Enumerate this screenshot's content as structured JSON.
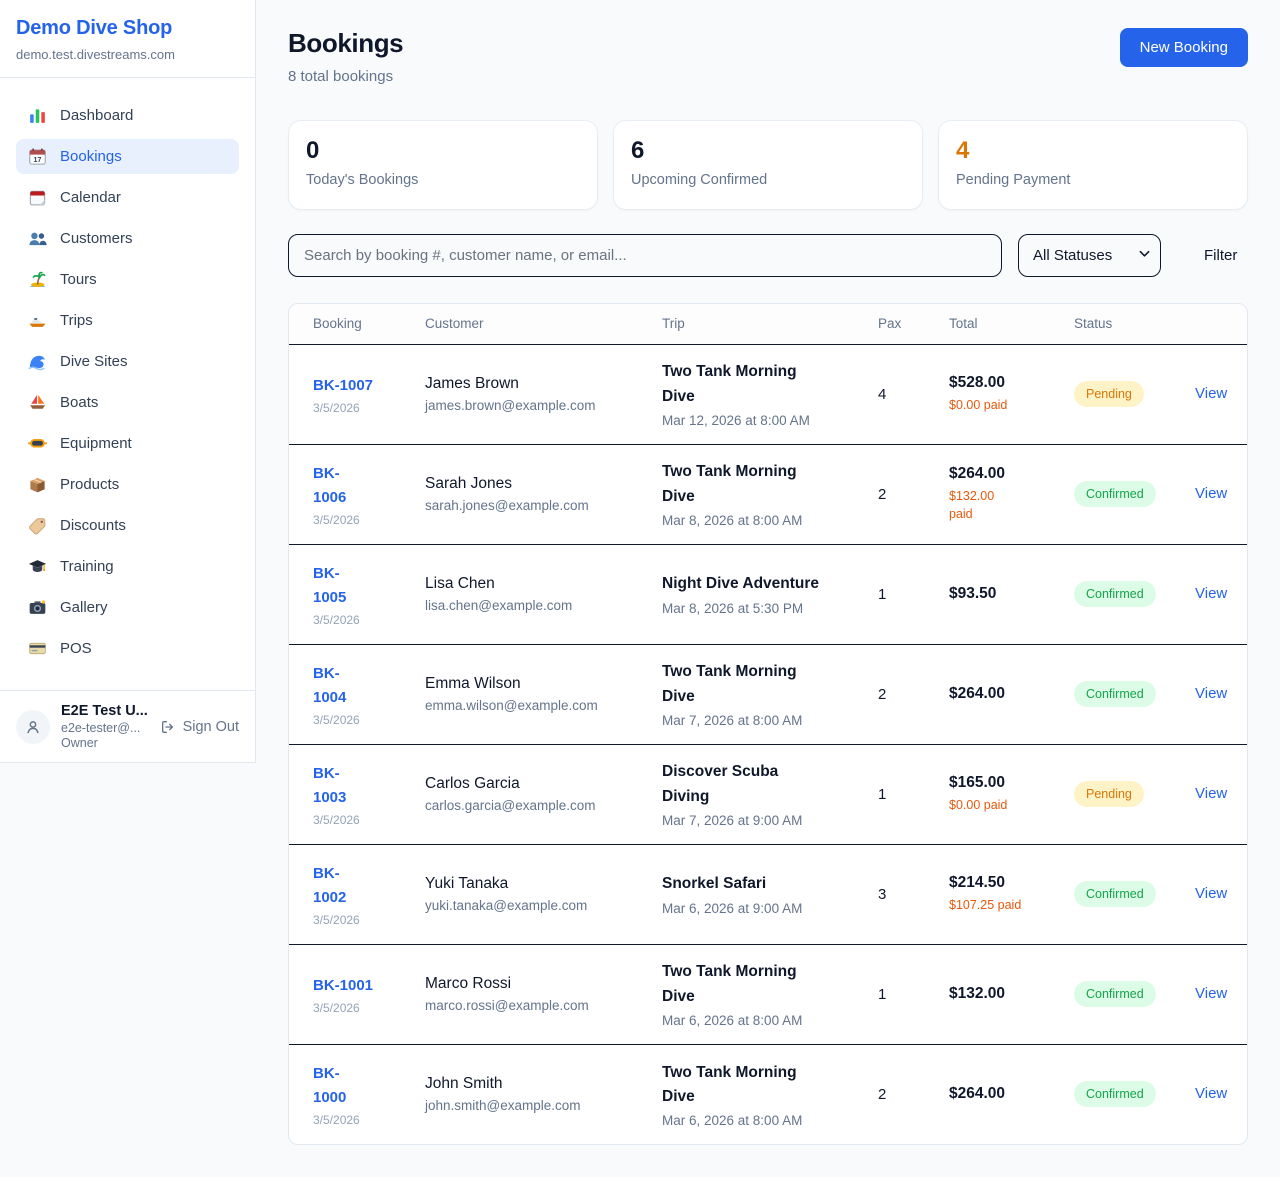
{
  "sidebar": {
    "title": "Demo Dive Shop",
    "domain": "demo.test.divestreams.com",
    "items": [
      {
        "icon": "dashboard-icon",
        "label": "Dashboard",
        "active": false
      },
      {
        "icon": "bookings-calendar-icon",
        "label": "Bookings",
        "active": true
      },
      {
        "icon": "calendar-icon",
        "label": "Calendar",
        "active": false
      },
      {
        "icon": "customers-icon",
        "label": "Customers",
        "active": false
      },
      {
        "icon": "tours-island-icon",
        "label": "Tours",
        "active": false
      },
      {
        "icon": "trips-boat-icon",
        "label": "Trips",
        "active": false
      },
      {
        "icon": "dive-sites-wave-icon",
        "label": "Dive Sites",
        "active": false
      },
      {
        "icon": "boats-sailboat-icon",
        "label": "Boats",
        "active": false
      },
      {
        "icon": "equipment-mask-icon",
        "label": "Equipment",
        "active": false
      },
      {
        "icon": "products-package-icon",
        "label": "Products",
        "active": false
      },
      {
        "icon": "discounts-tag-icon",
        "label": "Discounts",
        "active": false
      },
      {
        "icon": "training-cap-icon",
        "label": "Training",
        "active": false
      },
      {
        "icon": "gallery-camera-icon",
        "label": "Gallery",
        "active": false
      },
      {
        "icon": "pos-card-icon",
        "label": "POS",
        "active": false
      }
    ],
    "user": {
      "name": "E2E Test U...",
      "email": "e2e-tester@...",
      "role": "Owner",
      "signout_label": "Sign Out"
    }
  },
  "header": {
    "title": "Bookings",
    "subtitle": "8 total bookings",
    "new_booking_label": "New Booking"
  },
  "stats": [
    {
      "value": "0",
      "label": "Today's Bookings",
      "value_color": "#0f172a"
    },
    {
      "value": "6",
      "label": "Upcoming Confirmed",
      "value_color": "#0f172a"
    },
    {
      "value": "4",
      "label": "Pending Payment",
      "value_color": "#d97706"
    }
  ],
  "filters": {
    "search_placeholder": "Search by booking #, customer name, or email...",
    "status_selected": "All Statuses",
    "filter_label": "Filter"
  },
  "table": {
    "columns": [
      "Booking",
      "Customer",
      "Trip",
      "Pax",
      "Total",
      "Status",
      ""
    ],
    "rows": [
      {
        "id_lines": [
          "BK-1007"
        ],
        "date": "3/5/2026",
        "customer": "James Brown",
        "email": "james.brown@example.com",
        "trip_lines": [
          "Two Tank Morning",
          "Dive"
        ],
        "trip_date": "Mar 12, 2026 at 8:00 AM",
        "pax": "4",
        "total": "$528.00",
        "paid_lines": [
          "$0.00 paid"
        ],
        "status": "Pending",
        "view_label": "View"
      },
      {
        "id_lines": [
          "BK-",
          "1006"
        ],
        "date": "3/5/2026",
        "customer": "Sarah Jones",
        "email": "sarah.jones@example.com",
        "trip_lines": [
          "Two Tank Morning",
          "Dive"
        ],
        "trip_date": "Mar 8, 2026 at 8:00 AM",
        "pax": "2",
        "total": "$264.00",
        "paid_lines": [
          "$132.00",
          "paid"
        ],
        "status": "Confirmed",
        "view_label": "View"
      },
      {
        "id_lines": [
          "BK-",
          "1005"
        ],
        "date": "3/5/2026",
        "customer": "Lisa Chen",
        "email": "lisa.chen@example.com",
        "trip_lines": [
          "Night Dive Adventure"
        ],
        "trip_date": "Mar 8, 2026 at 5:30 PM",
        "pax": "1",
        "total": "$93.50",
        "paid_lines": [],
        "status": "Confirmed",
        "view_label": "View"
      },
      {
        "id_lines": [
          "BK-",
          "1004"
        ],
        "date": "3/5/2026",
        "customer": "Emma Wilson",
        "email": "emma.wilson@example.com",
        "trip_lines": [
          "Two Tank Morning",
          "Dive"
        ],
        "trip_date": "Mar 7, 2026 at 8:00 AM",
        "pax": "2",
        "total": "$264.00",
        "paid_lines": [],
        "status": "Confirmed",
        "view_label": "View"
      },
      {
        "id_lines": [
          "BK-",
          "1003"
        ],
        "date": "3/5/2026",
        "customer": "Carlos Garcia",
        "email": "carlos.garcia@example.com",
        "trip_lines": [
          "Discover Scuba",
          "Diving"
        ],
        "trip_date": "Mar 7, 2026 at 9:00 AM",
        "pax": "1",
        "total": "$165.00",
        "paid_lines": [
          "$0.00 paid"
        ],
        "status": "Pending",
        "view_label": "View"
      },
      {
        "id_lines": [
          "BK-",
          "1002"
        ],
        "date": "3/5/2026",
        "customer": "Yuki Tanaka",
        "email": "yuki.tanaka@example.com",
        "trip_lines": [
          "Snorkel Safari"
        ],
        "trip_date": "Mar 6, 2026 at 9:00 AM",
        "pax": "3",
        "total": "$214.50",
        "paid_lines": [
          "$107.25 paid"
        ],
        "status": "Confirmed",
        "view_label": "View"
      },
      {
        "id_lines": [
          "BK-1001"
        ],
        "date": "3/5/2026",
        "customer": "Marco Rossi",
        "email": "marco.rossi@example.com",
        "trip_lines": [
          "Two Tank Morning",
          "Dive"
        ],
        "trip_date": "Mar 6, 2026 at 8:00 AM",
        "pax": "1",
        "total": "$132.00",
        "paid_lines": [],
        "status": "Confirmed",
        "view_label": "View"
      },
      {
        "id_lines": [
          "BK-",
          "1000"
        ],
        "date": "3/5/2026",
        "customer": "John Smith",
        "email": "john.smith@example.com",
        "trip_lines": [
          "Two Tank Morning",
          "Dive"
        ],
        "trip_date": "Mar 6, 2026 at 8:00 AM",
        "pax": "2",
        "total": "$264.00",
        "paid_lines": [],
        "status": "Confirmed",
        "view_label": "View"
      }
    ]
  },
  "colors": {
    "accent_blue": "#2563eb",
    "active_nav_bg": "#e8f0fe",
    "pending_text": "#d97706",
    "pending_bg": "#fef3c7",
    "confirmed_text": "#16a34a",
    "confirmed_bg": "#dcfce7",
    "paid_orange": "#ea580c",
    "page_bg": "#f8fafc"
  }
}
